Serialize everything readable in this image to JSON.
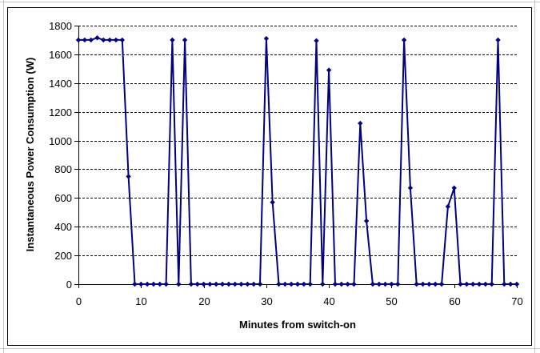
{
  "chart_data": {
    "type": "line",
    "title": "",
    "xlabel": "Minutes from switch-on",
    "ylabel": "Instantaneous Power Consumption (W)",
    "xlim": [
      0,
      70
    ],
    "ylim": [
      0,
      1800
    ],
    "xticks": [
      0,
      10,
      20,
      30,
      40,
      50,
      60,
      70
    ],
    "yticks": [
      0,
      200,
      400,
      600,
      800,
      1000,
      1200,
      1400,
      1600,
      1800
    ],
    "grid": true,
    "legend": "none",
    "series_color": "#000080",
    "x": [
      0,
      1,
      2,
      3,
      4,
      5,
      6,
      7,
      8,
      9,
      10,
      11,
      12,
      13,
      14,
      15,
      16,
      17,
      18,
      19,
      20,
      21,
      22,
      23,
      24,
      25,
      26,
      27,
      28,
      29,
      30,
      31,
      32,
      33,
      34,
      35,
      36,
      37,
      38,
      39,
      40,
      41,
      42,
      43,
      44,
      45,
      46,
      47,
      48,
      49,
      50,
      51,
      52,
      53,
      54,
      55,
      56,
      57,
      58,
      59,
      60,
      61,
      62,
      63,
      64,
      65,
      66,
      67,
      68,
      69,
      70
    ],
    "y": [
      1700,
      1700,
      1700,
      1715,
      1700,
      1700,
      1700,
      1700,
      750,
      0,
      0,
      0,
      0,
      0,
      0,
      1700,
      0,
      1700,
      0,
      0,
      0,
      0,
      0,
      0,
      0,
      0,
      0,
      0,
      0,
      0,
      1710,
      570,
      0,
      0,
      0,
      0,
      0,
      0,
      1695,
      0,
      1490,
      0,
      0,
      0,
      0,
      1120,
      440,
      0,
      0,
      0,
      0,
      0,
      1700,
      670,
      0,
      0,
      0,
      0,
      0,
      540,
      670,
      0,
      0,
      0,
      0,
      0,
      0,
      1700,
      0,
      0,
      0
    ]
  }
}
